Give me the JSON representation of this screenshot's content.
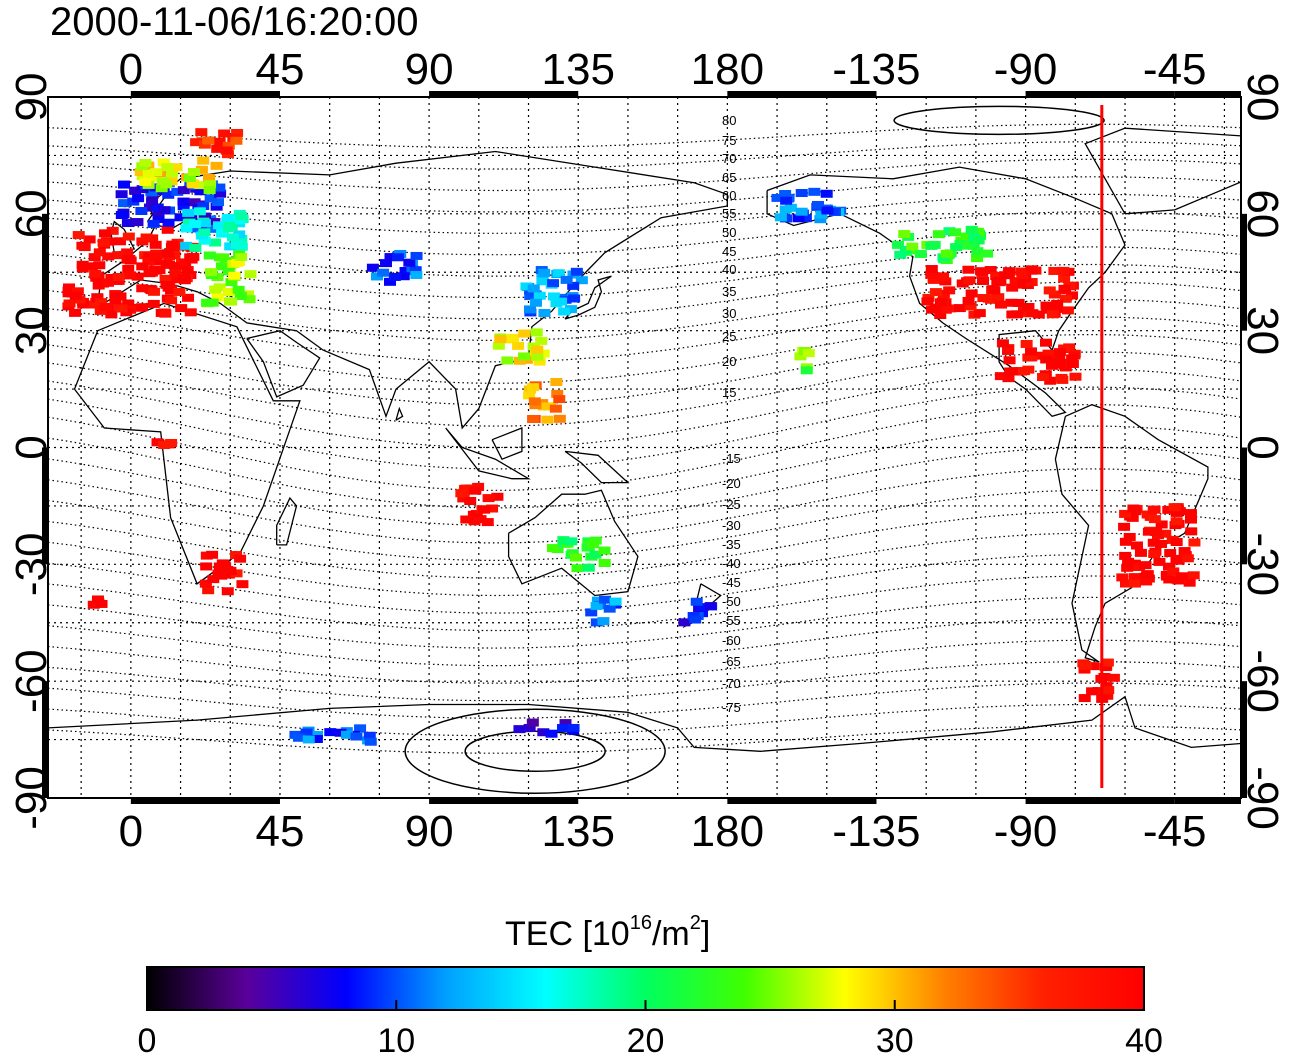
{
  "header": {
    "timestamp": "2000-11-06/16:20:00"
  },
  "map": {
    "projection": "equirectangular",
    "lon_range": [
      -25,
      335
    ],
    "lat_range": [
      -90,
      90
    ],
    "top_lon_ticks": [
      {
        "lon": 0,
        "label": "0"
      },
      {
        "lon": 45,
        "label": "45"
      },
      {
        "lon": 90,
        "label": "90"
      },
      {
        "lon": 135,
        "label": "135"
      },
      {
        "lon": 180,
        "label": "180"
      },
      {
        "lon": 225,
        "label": "-135"
      },
      {
        "lon": 270,
        "label": "-90"
      },
      {
        "lon": 315,
        "label": "-45"
      }
    ],
    "bottom_lon_ticks": [
      {
        "lon": 0,
        "label": "0"
      },
      {
        "lon": 45,
        "label": "45"
      },
      {
        "lon": 90,
        "label": "90"
      },
      {
        "lon": 135,
        "label": "135"
      },
      {
        "lon": 180,
        "label": "180"
      },
      {
        "lon": 225,
        "label": "-135"
      },
      {
        "lon": 270,
        "label": "-90"
      },
      {
        "lon": 315,
        "label": "-45"
      }
    ],
    "lat_ticks": [
      {
        "lat": 90,
        "label": "90"
      },
      {
        "lat": 60,
        "label": "60"
      },
      {
        "lat": 30,
        "label": "30"
      },
      {
        "lat": 0,
        "label": "0"
      },
      {
        "lat": -30,
        "label": "-30"
      },
      {
        "lat": -60,
        "label": "-60"
      },
      {
        "lat": -90,
        "label": "-90"
      }
    ],
    "magnetic_lat_labels": [
      "80",
      "75",
      "70",
      "65",
      "60",
      "55",
      "50",
      "45",
      "40",
      "35",
      "30",
      "25",
      "20",
      "15",
      "-15",
      "-20",
      "-25",
      "-30",
      "-35",
      "-40",
      "-45",
      "-50",
      "-55",
      "-60",
      "-65",
      "-70",
      "-75"
    ],
    "terminator_lon": 293,
    "terminator_color": "#ff0000",
    "tec_clusters": [
      {
        "lon": 0,
        "lat": 45,
        "w": 38,
        "h": 22,
        "v": 40
      },
      {
        "lon": 12,
        "lat": 62,
        "w": 30,
        "h": 12,
        "v": 8
      },
      {
        "lon": 25,
        "lat": 56,
        "w": 20,
        "h": 10,
        "v": 16
      },
      {
        "lon": 30,
        "lat": 44,
        "w": 14,
        "h": 14,
        "v": 26
      },
      {
        "lon": 15,
        "lat": 70,
        "w": 25,
        "h": 8,
        "v": 28
      },
      {
        "lon": 25,
        "lat": 78,
        "w": 15,
        "h": 6,
        "v": 36
      },
      {
        "lon": 28,
        "lat": -32,
        "w": 12,
        "h": 10,
        "v": 40
      },
      {
        "lon": -10,
        "lat": -40,
        "w": 4,
        "h": 3,
        "v": 40
      },
      {
        "lon": 10,
        "lat": 2,
        "w": 5,
        "h": 5,
        "v": 40
      },
      {
        "lon": 80,
        "lat": 46,
        "w": 14,
        "h": 8,
        "v": 10
      },
      {
        "lon": 128,
        "lat": 40,
        "w": 18,
        "h": 12,
        "v": 12
      },
      {
        "lon": 118,
        "lat": 26,
        "w": 14,
        "h": 8,
        "v": 28
      },
      {
        "lon": 125,
        "lat": 12,
        "w": 10,
        "h": 10,
        "v": 32
      },
      {
        "lon": 105,
        "lat": -15,
        "w": 12,
        "h": 10,
        "v": 40
      },
      {
        "lon": 135,
        "lat": -27,
        "w": 16,
        "h": 8,
        "v": 22
      },
      {
        "lon": 143,
        "lat": -42,
        "w": 10,
        "h": 6,
        "v": 11
      },
      {
        "lon": 172,
        "lat": -42,
        "w": 10,
        "h": 6,
        "v": 8
      },
      {
        "lon": 205,
        "lat": 62,
        "w": 20,
        "h": 8,
        "v": 11
      },
      {
        "lon": 262,
        "lat": 40,
        "w": 45,
        "h": 12,
        "v": 40
      },
      {
        "lon": 245,
        "lat": 52,
        "w": 28,
        "h": 8,
        "v": 22
      },
      {
        "lon": 275,
        "lat": 22,
        "w": 25,
        "h": 10,
        "v": 40
      },
      {
        "lon": 310,
        "lat": -25,
        "w": 22,
        "h": 20,
        "v": 40
      },
      {
        "lon": 292,
        "lat": -60,
        "w": 10,
        "h": 10,
        "v": 40
      },
      {
        "lon": 205,
        "lat": 22,
        "w": 6,
        "h": 6,
        "v": 24
      },
      {
        "lon": 60,
        "lat": -74,
        "w": 25,
        "h": 4,
        "v": 10
      },
      {
        "lon": 125,
        "lat": -72,
        "w": 18,
        "h": 3,
        "v": 6
      }
    ]
  },
  "colorbar": {
    "label_main": "TEC  [10",
    "label_sup1": "16",
    "label_mid": "/m",
    "label_sup2": "2",
    "label_end": "]",
    "min": 0,
    "max": 40,
    "ticks": [
      {
        "value": 0,
        "label": "0"
      },
      {
        "value": 10,
        "label": "10"
      },
      {
        "value": 20,
        "label": "20"
      },
      {
        "value": 30,
        "label": "30"
      },
      {
        "value": 40,
        "label": "40"
      }
    ],
    "stops": [
      "#000000",
      "#5a009a",
      "#0000ff",
      "#00a0ff",
      "#00ffff",
      "#00ff60",
      "#40ff00",
      "#ffff00",
      "#ff8000",
      "#ff2000",
      "#ff0000"
    ]
  }
}
